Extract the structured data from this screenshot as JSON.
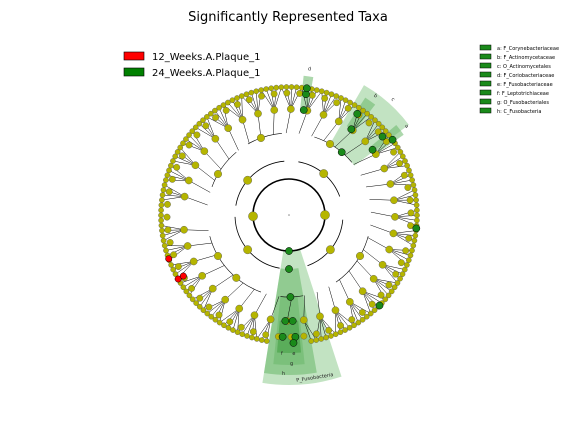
{
  "chart_data": {
    "type": "cladogram",
    "title": "Significantly Represented Taxa",
    "groups": [
      {
        "name": "12_Weeks.A.Plaque_1",
        "color": "#ff0000"
      },
      {
        "name": "24_Weeks.A.Plaque_1",
        "color": "#008000"
      }
    ],
    "neutral_color": "#b5b500",
    "clades": [
      {
        "letter": "a",
        "label": "a: F_Corynebacteriaceae",
        "group": "24_Weeks.A.Plaque_1"
      },
      {
        "letter": "b",
        "label": "b: F_Actinomycetaceae",
        "group": "24_Weeks.A.Plaque_1"
      },
      {
        "letter": "c",
        "label": "c: O_Actinomycetales",
        "group": "24_Weeks.A.Plaque_1"
      },
      {
        "letter": "d",
        "label": "d: F_Coriobacteriaceae",
        "group": "24_Weeks.A.Plaque_1"
      },
      {
        "letter": "e",
        "label": "e: F_Fusobacteriaceae",
        "group": "24_Weeks.A.Plaque_1"
      },
      {
        "letter": "f",
        "label": "f: F_Leptotrichiaceae",
        "group": "24_Weeks.A.Plaque_1"
      },
      {
        "letter": "g",
        "label": "g: O_Fusobacteriales",
        "group": "24_Weeks.A.Plaque_1"
      },
      {
        "letter": "h",
        "label": "h: C_Fusobacteria",
        "group": "24_Weeks.A.Plaque_1"
      }
    ],
    "wedge_labels": [
      "a",
      "b",
      "c",
      "d",
      "e",
      "f",
      "g",
      "h",
      "P_Fusobacteria"
    ],
    "highlighted_taxa": [
      {
        "group": "24_Weeks.A.Plaque_1",
        "clade": "c"
      },
      {
        "group": "24_Weeks.A.Plaque_1",
        "clade": "h"
      },
      {
        "group": "12_Weeks.A.Plaque_1",
        "clade": null
      }
    ],
    "leaf_count": 150
  },
  "colors": {
    "red": "#ff0000",
    "green": "#008000",
    "green_node": "#1a8a1a",
    "olive": "#b5b500",
    "wedge_light": "#90cc90",
    "wedge_mid": "#6ab86a",
    "wedge_dark": "#3f9d3f"
  }
}
